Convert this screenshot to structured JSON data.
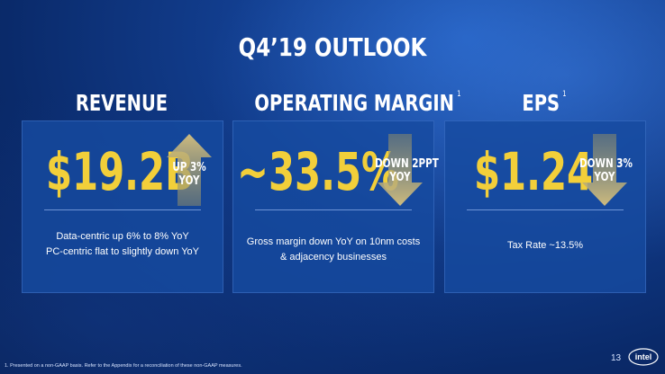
{
  "slide": {
    "title": "Q4’19 OUTLOOK",
    "page_number": "13",
    "footnote": "1. Presented on a non-GAAP basis. Refer to the Appendix for a reconciliation of these non-GAAP measures.",
    "logo_text": "intel",
    "colors": {
      "background": "#0a2a6a",
      "panel": "#164aa0",
      "value": "#f2cf3a",
      "arrow": "#d8c27a"
    }
  },
  "metrics": [
    {
      "heading": "REVENUE",
      "heading_sup": "",
      "value": "$19.2B",
      "direction": "up",
      "arrow_icon": "up-arrow-icon",
      "delta_line1": "UP 3%",
      "delta_line2": "YOY",
      "note_line1": "Data-centric up 6% to 8% YoY",
      "note_line2": "PC-centric flat to slightly down YoY"
    },
    {
      "heading": "OPERATING MARGIN",
      "heading_sup": "1",
      "value": "~33.5%",
      "direction": "down",
      "arrow_icon": "down-arrow-icon",
      "delta_line1": "DOWN 2PPT",
      "delta_line2": "YOY",
      "note_line1": "Gross margin down YoY on 10nm costs",
      "note_line2": "& adjacency businesses"
    },
    {
      "heading": "EPS",
      "heading_sup": "1",
      "value": "$1.24",
      "direction": "down",
      "arrow_icon": "down-arrow-icon",
      "delta_line1": "DOWN 3%",
      "delta_line2": "YOY",
      "note_line1": "Tax Rate ~13.5%",
      "note_line2": ""
    }
  ]
}
